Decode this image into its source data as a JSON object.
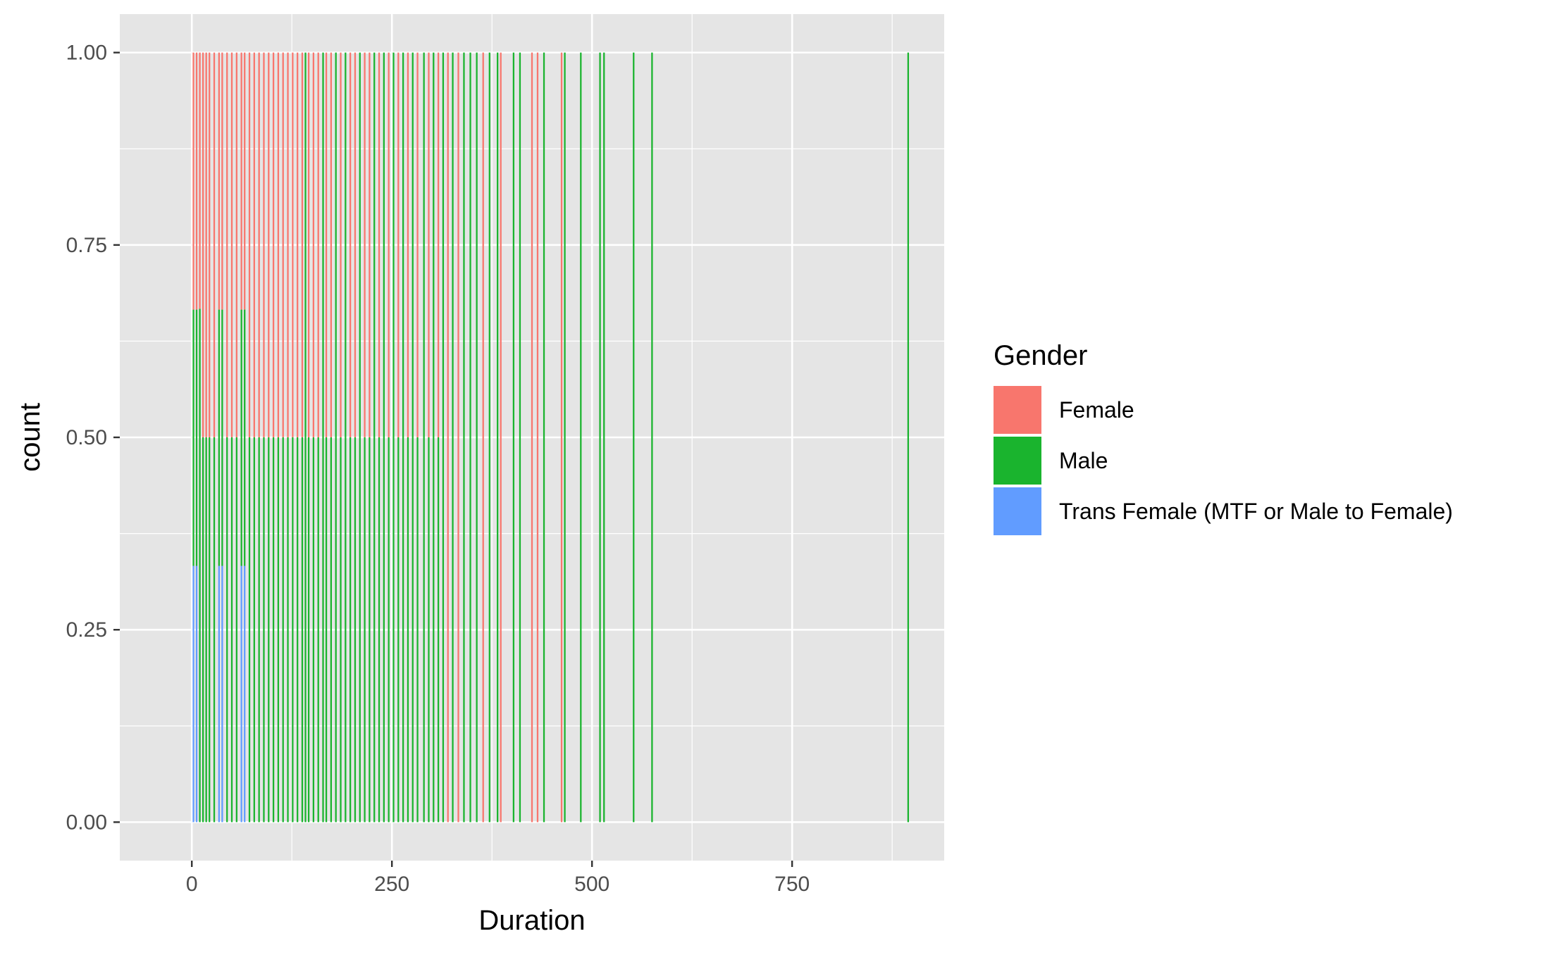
{
  "chart_data": {
    "type": "bar",
    "position": "fill",
    "xlabel": "Duration",
    "ylabel": "count",
    "xlim": [
      -90,
      940
    ],
    "ylim": [
      -0.05,
      1.05
    ],
    "x_ticks": [
      {
        "value": 0,
        "label": "0"
      },
      {
        "value": 250,
        "label": "250"
      },
      {
        "value": 500,
        "label": "500"
      },
      {
        "value": 750,
        "label": "750"
      }
    ],
    "y_ticks": [
      {
        "value": 0,
        "label": "0.00"
      },
      {
        "value": 0.25,
        "label": "0.25"
      },
      {
        "value": 0.5,
        "label": "0.50"
      },
      {
        "value": 0.75,
        "label": "0.75"
      },
      {
        "value": 1,
        "label": "1.00"
      }
    ],
    "bar_width": 2,
    "panel_background": "#e5e5e5",
    "grid_color": "#ffffff",
    "legend": {
      "title": "Gender",
      "position": "right",
      "items": [
        {
          "label": "Female",
          "color": "#f8766d"
        },
        {
          "label": "Male",
          "color": "#1ab42e"
        },
        {
          "label": "Trans Female (MTF or Male to Female)",
          "color": "#619cff"
        }
      ]
    },
    "bars": [
      {
        "x": 2,
        "stack": [
          [
            "Trans Female (MTF or Male to Female)",
            0.333
          ],
          [
            "Male",
            0.333
          ],
          [
            "Female",
            0.334
          ]
        ]
      },
      {
        "x": 6,
        "stack": [
          [
            "Trans Female (MTF or Male to Female)",
            0.333
          ],
          [
            "Male",
            0.333
          ],
          [
            "Female",
            0.334
          ]
        ]
      },
      {
        "x": 10,
        "stack": [
          [
            "Male",
            0.667
          ],
          [
            "Female",
            0.333
          ]
        ]
      },
      {
        "x": 14,
        "stack": [
          [
            "Male",
            0.5
          ],
          [
            "Female",
            0.5
          ]
        ]
      },
      {
        "x": 18,
        "stack": [
          [
            "Male",
            0.5
          ],
          [
            "Female",
            0.5
          ]
        ]
      },
      {
        "x": 22,
        "stack": [
          [
            "Male",
            0.5
          ],
          [
            "Female",
            0.5
          ]
        ]
      },
      {
        "x": 28,
        "stack": [
          [
            "Male",
            0.5
          ],
          [
            "Female",
            0.5
          ]
        ]
      },
      {
        "x": 34,
        "stack": [
          [
            "Trans Female (MTF or Male to Female)",
            0.333
          ],
          [
            "Male",
            0.333
          ],
          [
            "Female",
            0.334
          ]
        ]
      },
      {
        "x": 38,
        "stack": [
          [
            "Trans Female (MTF or Male to Female)",
            0.333
          ],
          [
            "Male",
            0.333
          ],
          [
            "Female",
            0.334
          ]
        ]
      },
      {
        "x": 44,
        "stack": [
          [
            "Male",
            0.5
          ],
          [
            "Female",
            0.5
          ]
        ]
      },
      {
        "x": 50,
        "stack": [
          [
            "Male",
            0.5
          ],
          [
            "Female",
            0.5
          ]
        ]
      },
      {
        "x": 56,
        "stack": [
          [
            "Male",
            0.5
          ],
          [
            "Female",
            0.5
          ]
        ]
      },
      {
        "x": 62,
        "stack": [
          [
            "Trans Female (MTF or Male to Female)",
            0.333
          ],
          [
            "Male",
            0.333
          ],
          [
            "Female",
            0.334
          ]
        ]
      },
      {
        "x": 66,
        "stack": [
          [
            "Trans Female (MTF or Male to Female)",
            0.333
          ],
          [
            "Male",
            0.333
          ],
          [
            "Female",
            0.334
          ]
        ]
      },
      {
        "x": 72,
        "stack": [
          [
            "Male",
            0.5
          ],
          [
            "Female",
            0.5
          ]
        ]
      },
      {
        "x": 78,
        "stack": [
          [
            "Male",
            0.5
          ],
          [
            "Female",
            0.5
          ]
        ]
      },
      {
        "x": 84,
        "stack": [
          [
            "Male",
            0.5
          ],
          [
            "Female",
            0.5
          ]
        ]
      },
      {
        "x": 90,
        "stack": [
          [
            "Male",
            0.5
          ],
          [
            "Female",
            0.5
          ]
        ]
      },
      {
        "x": 96,
        "stack": [
          [
            "Male",
            0.5
          ],
          [
            "Female",
            0.5
          ]
        ]
      },
      {
        "x": 102,
        "stack": [
          [
            "Male",
            0.5
          ],
          [
            "Female",
            0.5
          ]
        ]
      },
      {
        "x": 108,
        "stack": [
          [
            "Male",
            0.5
          ],
          [
            "Female",
            0.5
          ]
        ]
      },
      {
        "x": 114,
        "stack": [
          [
            "Male",
            0.5
          ],
          [
            "Female",
            0.5
          ]
        ]
      },
      {
        "x": 120,
        "stack": [
          [
            "Male",
            0.5
          ],
          [
            "Female",
            0.5
          ]
        ]
      },
      {
        "x": 126,
        "stack": [
          [
            "Male",
            0.5
          ],
          [
            "Female",
            0.5
          ]
        ]
      },
      {
        "x": 132,
        "stack": [
          [
            "Male",
            0.5
          ],
          [
            "Female",
            0.5
          ]
        ]
      },
      {
        "x": 138,
        "stack": [
          [
            "Male",
            0.5
          ],
          [
            "Female",
            0.5
          ]
        ]
      },
      {
        "x": 142,
        "stack": [
          [
            "Male",
            1
          ]
        ]
      },
      {
        "x": 146,
        "stack": [
          [
            "Male",
            0.5
          ],
          [
            "Female",
            0.5
          ]
        ]
      },
      {
        "x": 152,
        "stack": [
          [
            "Male",
            0.5
          ],
          [
            "Female",
            0.5
          ]
        ]
      },
      {
        "x": 158,
        "stack": [
          [
            "Male",
            0.5
          ],
          [
            "Female",
            0.5
          ]
        ]
      },
      {
        "x": 164,
        "stack": [
          [
            "Male",
            1
          ]
        ]
      },
      {
        "x": 168,
        "stack": [
          [
            "Male",
            0.5
          ],
          [
            "Female",
            0.5
          ]
        ]
      },
      {
        "x": 174,
        "stack": [
          [
            "Male",
            0.5
          ],
          [
            "Female",
            0.5
          ]
        ]
      },
      {
        "x": 180,
        "stack": [
          [
            "Male",
            1
          ]
        ]
      },
      {
        "x": 186,
        "stack": [
          [
            "Male",
            0.5
          ],
          [
            "Female",
            0.5
          ]
        ]
      },
      {
        "x": 192,
        "stack": [
          [
            "Male",
            1
          ]
        ]
      },
      {
        "x": 198,
        "stack": [
          [
            "Male",
            0.5
          ],
          [
            "Female",
            0.5
          ]
        ]
      },
      {
        "x": 204,
        "stack": [
          [
            "Male",
            0.5
          ],
          [
            "Female",
            0.5
          ]
        ]
      },
      {
        "x": 210,
        "stack": [
          [
            "Male",
            1
          ]
        ]
      },
      {
        "x": 216,
        "stack": [
          [
            "Male",
            0.5
          ],
          [
            "Female",
            0.5
          ]
        ]
      },
      {
        "x": 222,
        "stack": [
          [
            "Male",
            0.5
          ],
          [
            "Female",
            0.5
          ]
        ]
      },
      {
        "x": 228,
        "stack": [
          [
            "Male",
            1
          ]
        ]
      },
      {
        "x": 234,
        "stack": [
          [
            "Male",
            0.5
          ],
          [
            "Female",
            0.5
          ]
        ]
      },
      {
        "x": 240,
        "stack": [
          [
            "Male",
            1
          ]
        ]
      },
      {
        "x": 246,
        "stack": [
          [
            "Male",
            0.5
          ],
          [
            "Female",
            0.5
          ]
        ]
      },
      {
        "x": 252,
        "stack": [
          [
            "Male",
            1
          ]
        ]
      },
      {
        "x": 258,
        "stack": [
          [
            "Male",
            0.5
          ],
          [
            "Female",
            0.5
          ]
        ]
      },
      {
        "x": 264,
        "stack": [
          [
            "Male",
            1
          ]
        ]
      },
      {
        "x": 270,
        "stack": [
          [
            "Male",
            0.5
          ],
          [
            "Female",
            0.5
          ]
        ]
      },
      {
        "x": 276,
        "stack": [
          [
            "Male",
            1
          ]
        ]
      },
      {
        "x": 282,
        "stack": [
          [
            "Male",
            0.5
          ],
          [
            "Female",
            0.5
          ]
        ]
      },
      {
        "x": 290,
        "stack": [
          [
            "Male",
            1
          ]
        ]
      },
      {
        "x": 296,
        "stack": [
          [
            "Male",
            0.5
          ],
          [
            "Female",
            0.5
          ]
        ]
      },
      {
        "x": 302,
        "stack": [
          [
            "Male",
            1
          ]
        ]
      },
      {
        "x": 308,
        "stack": [
          [
            "Male",
            0.5
          ],
          [
            "Female",
            0.5
          ]
        ]
      },
      {
        "x": 314,
        "stack": [
          [
            "Male",
            1
          ]
        ]
      },
      {
        "x": 320,
        "stack": [
          [
            "Female",
            1
          ]
        ]
      },
      {
        "x": 326,
        "stack": [
          [
            "Male",
            1
          ]
        ]
      },
      {
        "x": 333,
        "stack": [
          [
            "Female",
            1
          ]
        ]
      },
      {
        "x": 340,
        "stack": [
          [
            "Male",
            1
          ]
        ]
      },
      {
        "x": 348,
        "stack": [
          [
            "Male",
            1
          ]
        ]
      },
      {
        "x": 356,
        "stack": [
          [
            "Male",
            1
          ]
        ]
      },
      {
        "x": 364,
        "stack": [
          [
            "Female",
            1
          ]
        ]
      },
      {
        "x": 372,
        "stack": [
          [
            "Male",
            1
          ]
        ]
      },
      {
        "x": 382,
        "stack": [
          [
            "Male",
            1
          ]
        ]
      },
      {
        "x": 386,
        "stack": [
          [
            "Female",
            1
          ]
        ]
      },
      {
        "x": 402,
        "stack": [
          [
            "Male",
            1
          ]
        ]
      },
      {
        "x": 410,
        "stack": [
          [
            "Male",
            1
          ]
        ]
      },
      {
        "x": 425,
        "stack": [
          [
            "Female",
            1
          ]
        ]
      },
      {
        "x": 432,
        "stack": [
          [
            "Female",
            1
          ]
        ]
      },
      {
        "x": 440,
        "stack": [
          [
            "Male",
            1
          ]
        ]
      },
      {
        "x": 462,
        "stack": [
          [
            "Female",
            1
          ]
        ]
      },
      {
        "x": 466,
        "stack": [
          [
            "Male",
            1
          ]
        ]
      },
      {
        "x": 486,
        "stack": [
          [
            "Male",
            1
          ]
        ]
      },
      {
        "x": 510,
        "stack": [
          [
            "Male",
            1
          ]
        ]
      },
      {
        "x": 515,
        "stack": [
          [
            "Male",
            1
          ]
        ]
      },
      {
        "x": 552,
        "stack": [
          [
            "Male",
            1
          ]
        ]
      },
      {
        "x": 575,
        "stack": [
          [
            "Male",
            1
          ]
        ]
      },
      {
        "x": 895,
        "stack": [
          [
            "Male",
            1
          ]
        ]
      }
    ]
  }
}
